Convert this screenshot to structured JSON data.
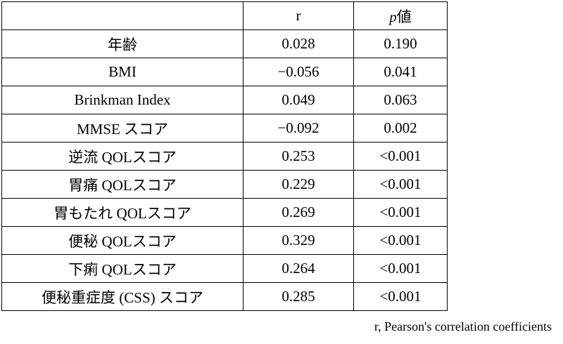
{
  "table": {
    "header": {
      "r": "r",
      "p_value": {
        "italic": "p",
        "rest": "値"
      }
    },
    "rows": [
      [
        "年齢",
        "0.028",
        "0.190"
      ],
      [
        "BMI",
        "−0.056",
        "0.041"
      ],
      [
        "Brinkman Index",
        "0.049",
        "0.063"
      ],
      [
        "MMSE スコア",
        "−0.092",
        "0.002"
      ],
      [
        "逆流 QOLスコア",
        "0.253",
        "<0.001"
      ],
      [
        "胃痛 QOLスコア",
        "0.229",
        "<0.001"
      ],
      [
        "胃もたれ QOLスコア",
        "0.269",
        "<0.001"
      ],
      [
        "便秘 QOLスコア",
        "0.329",
        "<0.001"
      ],
      [
        "下痢 QOLスコア",
        "0.264",
        "<0.001"
      ],
      [
        "便秘重症度 (CSS) スコア",
        "0.285",
        "<0.001"
      ]
    ],
    "footnote": "r, Pearson's correlation coefficients"
  }
}
